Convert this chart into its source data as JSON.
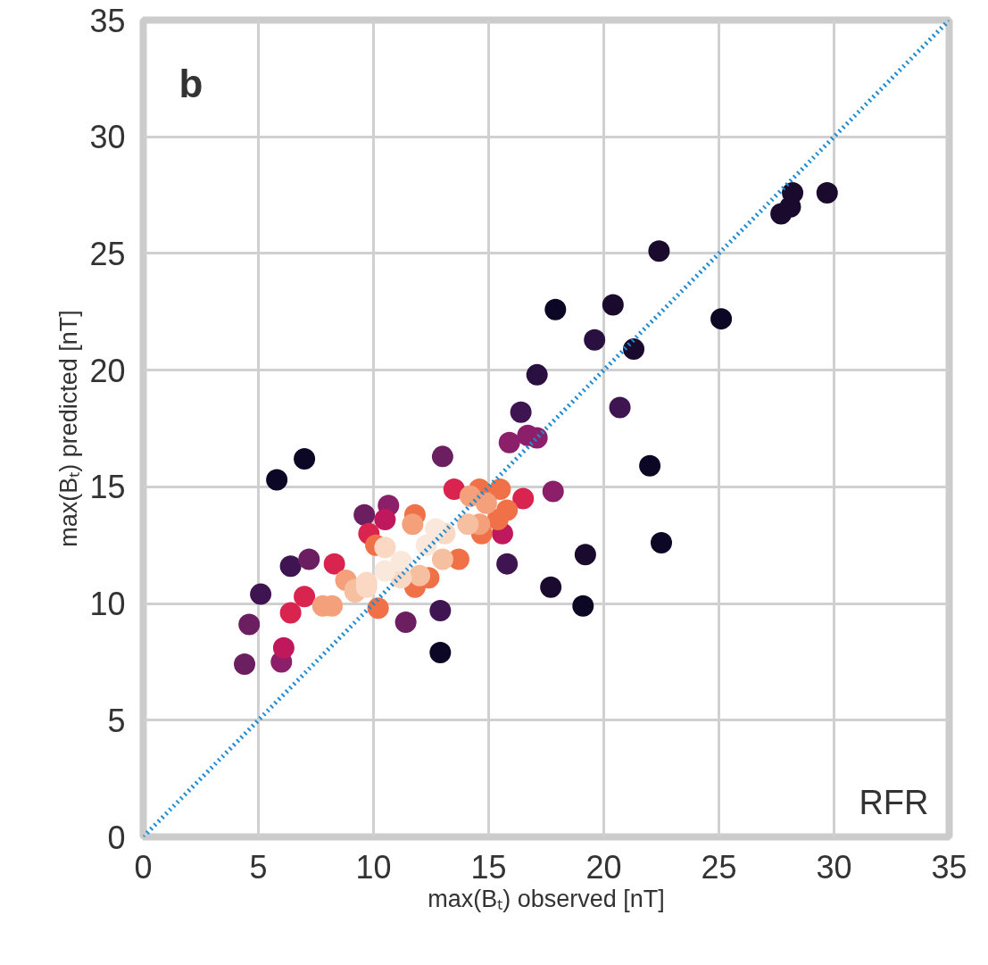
{
  "chart_data": {
    "type": "scatter",
    "xlabel": "max(Bₜ) observed [nT]",
    "ylabel": "max(Bₜ) predicted [nT]",
    "xlim": [
      0,
      35
    ],
    "ylim": [
      0,
      35
    ],
    "xticks": [
      0,
      5,
      10,
      15,
      20,
      25,
      30,
      35
    ],
    "yticks": [
      0,
      5,
      10,
      15,
      20,
      25,
      30,
      35
    ],
    "grid": true,
    "annotations": [
      "b",
      "RFR"
    ],
    "series": [
      {
        "marker": "circle",
        "x": [
          5.8,
          7.0,
          12.9,
          17.9,
          22.0,
          22.5,
          19.1,
          25.1,
          29.7,
          20.4,
          22.4,
          17.7,
          19.2,
          27.7,
          28.1,
          28.2,
          21.3,
          19.6,
          17.1,
          20.7,
          16.4,
          15.8,
          12.9,
          5.1,
          6.4,
          13.0,
          11.4,
          4.6,
          9.6,
          7.2,
          4.4,
          16.7,
          17.1,
          15.9,
          17.8,
          10.65,
          6.0,
          10.5,
          6.1,
          15.6,
          9.8,
          8.3,
          7.0,
          6.4,
          16.5,
          13.5,
          10.2,
          14.6,
          15.5,
          15.8,
          15.4,
          14.7,
          11.8,
          13.7,
          12.4,
          11.8,
          10.1,
          14.2,
          14.9,
          14.6,
          11.7,
          10.6,
          7.8,
          8.2,
          8.8,
          14.1,
          13.0,
          12.0,
          9.2,
          9.2,
          13.1,
          10.5,
          11.2,
          9.7,
          9.7,
          12.7,
          12.3,
          11.2,
          10.5
        ],
        "values": [
          15.3,
          16.2,
          7.9,
          22.6,
          15.9,
          12.6,
          9.9,
          22.2,
          27.6,
          22.8,
          25.1,
          10.7,
          12.1,
          26.7,
          27.0,
          27.6,
          20.9,
          21.3,
          19.8,
          18.4,
          18.2,
          11.7,
          9.7,
          10.4,
          11.6,
          16.3,
          9.2,
          9.1,
          13.8,
          11.9,
          7.4,
          17.2,
          17.1,
          16.9,
          14.8,
          14.2,
          7.5,
          13.6,
          8.1,
          13.0,
          13.0,
          11.7,
          10.3,
          9.6,
          14.5,
          14.9,
          9.8,
          14.9,
          14.9,
          14.0,
          13.6,
          13.0,
          13.8,
          11.9,
          11.1,
          10.7,
          12.5,
          14.6,
          14.3,
          13.4,
          13.4,
          null,
          9.9,
          9.9,
          11.0,
          13.4,
          11.9,
          11.2,
          10.6,
          10.5,
          13.0,
          12.4,
          11.1,
          10.9,
          10.7,
          13.2,
          12.5,
          11.8,
          11.4
        ],
        "colors": [
          "#0b0724",
          "#0b0724",
          "#0b0724",
          "#0b0724",
          "#0b0724",
          "#0b0724",
          "#0b0724",
          "#0b0724",
          "#1a0b2e",
          "#1a0b2e",
          "#1a0b2e",
          "#1a0b2e",
          "#1a0b2e",
          "#1a0b2e",
          "#1a0b2e",
          "#1a0b2e",
          "#1a0b2e",
          "#2a1040",
          "#2a1040",
          "#3e1550",
          "#3e1550",
          "#3e1550",
          "#3e1550",
          "#3e1550",
          "#3e1550",
          "#6b1f60",
          "#6b1f60",
          "#6b1f60",
          "#6b1f60",
          "#6b1f60",
          "#6b1f60",
          "#8c1f6a",
          "#8c1f6a",
          "#8c1f6a",
          "#8c1f6a",
          "#8c1f6a",
          "#8c1f6a",
          "#c0185c",
          "#c0185c",
          "#c0185c",
          "#d8244f",
          "#d8244f",
          "#d8244f",
          "#d8244f",
          "#d8244f",
          "#d8244f",
          "#f07048",
          "#f07048",
          "#f07048",
          "#f07048",
          "#f07048",
          "#f07048",
          "#f07048",
          "#f07048",
          "#f07048",
          "#f07048",
          "#f07048",
          "#f4a07a",
          "#f4a07a",
          "#f4a07a",
          "#f4a07a",
          "#f4a07a",
          "#f4a07a",
          "#f4a07a",
          "#f4a07a",
          "#f6c0a0",
          "#f6c0a0",
          "#f6c0a0",
          "#f6c0a0",
          "#f6c0a0",
          "#fad8c4",
          "#fad8c4",
          "#fad8c4",
          "#fad8c4",
          "#fad8c4",
          "#fbe8dc",
          "#fbe8dc",
          "#fbe8dc",
          "#fbe8dc"
        ]
      },
      {
        "type": "line",
        "x": [
          0,
          35
        ],
        "values": [
          0,
          35
        ],
        "color": "#1f8bd0",
        "line_style": "dotted",
        "marker": "none"
      }
    ]
  }
}
